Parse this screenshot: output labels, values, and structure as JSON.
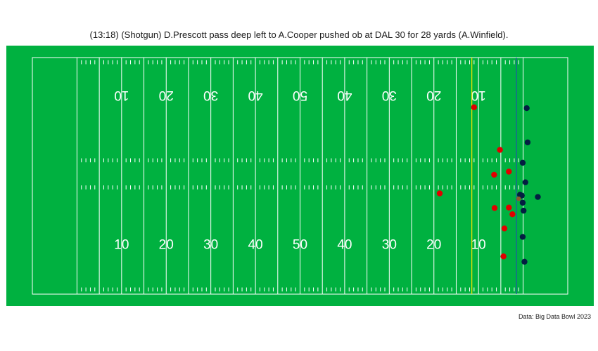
{
  "title": "(13:18) (Shotgun) D.Prescott pass deep left to A.Cooper pushed ob at DAL 30 for 28 yards (A.Winfield).",
  "caption": "Data: Big Data Bowl 2023",
  "colors": {
    "turf": "#00b140",
    "lines": "#ffffff",
    "first_down_line": "#f5e700",
    "line_of_scrimmage": "#1f5aa6",
    "offense": "#041e42",
    "defense": "#e00000",
    "football": "#8b5a2b"
  },
  "chart_data": {
    "type": "scatter",
    "title": "(13:18) (Shotgun) D.Prescott pass deep left to A.Cooper pushed ob at DAL 30 for 28 yards (A.Winfield).",
    "xlim": [
      0,
      120
    ],
    "ylim": [
      0,
      53.3
    ],
    "yard_numbers_bottom": [
      "10",
      "20",
      "30",
      "40",
      "50",
      "40",
      "30",
      "20",
      "10"
    ],
    "yard_numbers_top": [
      "10",
      "20",
      "30",
      "40",
      "50",
      "40",
      "30",
      "20",
      "10"
    ],
    "line_of_scrimmage_x": 108.5,
    "first_down_x": 98.5,
    "series": [
      {
        "team": "offense",
        "color": "#041e42",
        "points": [
          [
            110.8,
            41.9
          ],
          [
            111.0,
            34.2
          ],
          [
            109.9,
            29.6
          ],
          [
            110.5,
            25.2
          ],
          [
            109.3,
            22.4
          ],
          [
            109.7,
            22.2
          ],
          [
            113.3,
            21.9
          ],
          [
            109.9,
            20.6
          ],
          [
            110.1,
            18.8
          ],
          [
            109.9,
            12.9
          ],
          [
            110.3,
            7.3
          ]
        ]
      },
      {
        "team": "defense",
        "color": "#e00000",
        "points": [
          [
            99.0,
            42.1
          ],
          [
            104.8,
            32.5
          ],
          [
            106.8,
            27.6
          ],
          [
            103.5,
            26.9
          ],
          [
            91.3,
            22.7
          ],
          [
            103.6,
            19.4
          ],
          [
            106.8,
            19.5
          ],
          [
            107.6,
            18.0
          ],
          [
            105.8,
            14.8
          ],
          [
            105.6,
            8.5
          ]
        ]
      },
      {
        "team": "football",
        "color": "#8b5a2b",
        "points": [
          [
            109.0,
            21.5
          ]
        ]
      }
    ]
  }
}
